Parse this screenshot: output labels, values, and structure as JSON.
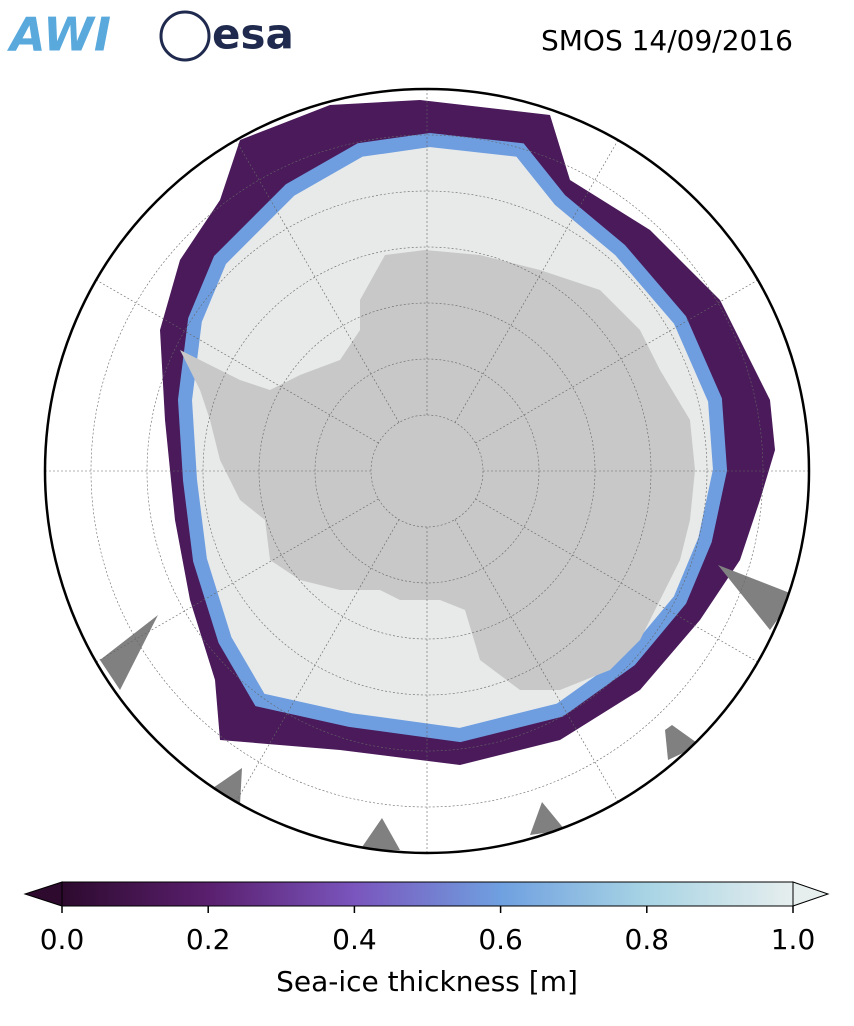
{
  "header": {
    "logos": [
      "AWI",
      "esa"
    ],
    "title": "SMOS 14/09/2016"
  },
  "colorbar": {
    "label": "Sea-ice thickness [m]",
    "clim": [
      0,
      1
    ],
    "ticks": [
      {
        "value": 0,
        "label": "0.0"
      },
      {
        "value": 0.2,
        "label": "0.2"
      },
      {
        "value": 0.4,
        "label": "0.4"
      },
      {
        "value": 0.6,
        "label": "0.6"
      },
      {
        "value": 0.8,
        "label": "0.8"
      },
      {
        "value": 1,
        "label": "1.0"
      }
    ],
    "colors": [
      "#2d0a2e",
      "#5a1f6e",
      "#7a55bd",
      "#6fa0e0",
      "#a8d4e4",
      "#e6eeee"
    ]
  }
}
